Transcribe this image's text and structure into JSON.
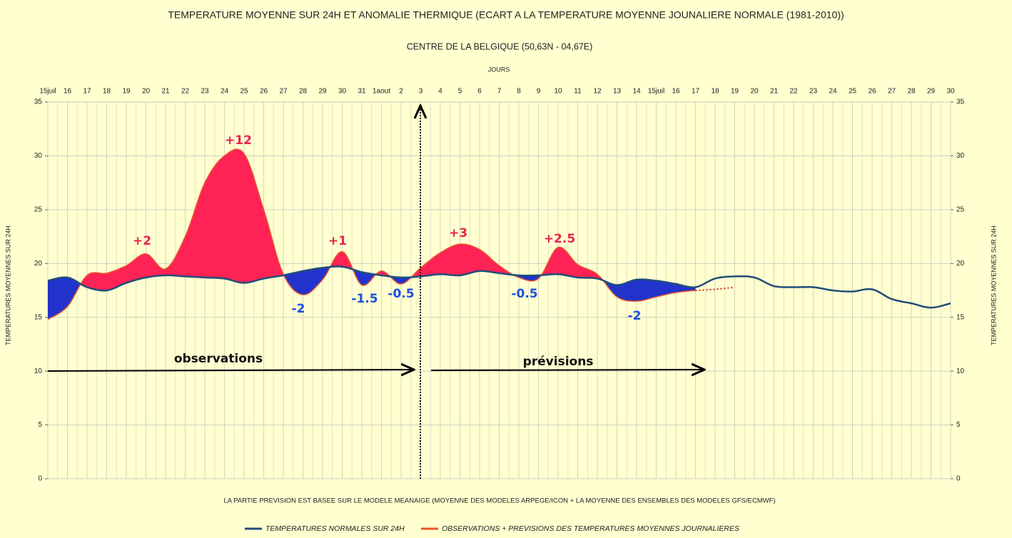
{
  "chart_data": {
    "type": "line",
    "title": "TEMPERATURE MOYENNE SUR 24H ET  ANOMALIE THERMIQUE (ECART A LA TEMPERATURE MOYENNE JOUNALIERE NORMALE (1981-2010))",
    "subtitle": "CENTRE DE LA BELGIQUE (50,63N - 04,67E)",
    "x_label": "JOURS",
    "y_label": "TEMPERATURES MOYENNES SUR 24H",
    "note": "LA PARTIE PREVISION EST BASEE SUR LE  MODELE MEANAIGE (MOYENNE DES MODELES  ARPEGE/ICON + LA MOYENNE DES ENSEMBLES DES MODELES GFS/ECMWF)",
    "categories": [
      "15juil",
      "16",
      "17",
      "18",
      "19",
      "20",
      "21",
      "22",
      "23",
      "24",
      "25",
      "26",
      "27",
      "28",
      "29",
      "30",
      "31",
      "1aout",
      "2",
      "3",
      "4",
      "5",
      "6",
      "7",
      "8",
      "9",
      "10",
      "11",
      "12",
      "13",
      "14",
      "15juil",
      "16",
      "17",
      "18",
      "19",
      "20",
      "21",
      "22",
      "23",
      "24",
      "25",
      "26",
      "27",
      "28",
      "29",
      "30"
    ],
    "series": [
      {
        "name": "TEMPERATURES NORMALES SUR 24H",
        "color": "#1f4e79",
        "values": [
          18.4,
          18.7,
          17.8,
          17.5,
          18.2,
          18.7,
          18.9,
          18.8,
          18.7,
          18.6,
          18.2,
          18.6,
          18.9,
          19.3,
          19.6,
          19.7,
          19.2,
          18.9,
          18.7,
          18.8,
          19.0,
          18.9,
          19.3,
          19.1,
          18.9,
          18.9,
          19.0,
          18.7,
          18.6,
          18.0,
          18.5,
          18.4,
          18.1,
          17.8,
          18.6,
          18.8,
          18.7,
          17.9,
          17.8,
          17.8,
          17.5,
          17.4,
          17.6,
          16.7,
          16.3,
          15.9,
          16.3
        ]
      },
      {
        "name": "OBSERVATIONS + PREVISIONS DES TEMPERATURES MOYENNES JOURNALIERES",
        "color": "#e8572a",
        "values": [
          14.8,
          16.0,
          18.9,
          19.1,
          19.8,
          20.9,
          19.5,
          22.5,
          27.5,
          30.0,
          30.2,
          25.0,
          19.0,
          17.1,
          18.5,
          21.1,
          18.0,
          19.3,
          18.1,
          19.6,
          21.0,
          21.8,
          21.3,
          19.8,
          18.7,
          18.6,
          21.5,
          19.9,
          19.0,
          16.9,
          16.5,
          16.9,
          17.3,
          17.5,
          17.6,
          17.8,
          null,
          null,
          null,
          null,
          null,
          null,
          null,
          null,
          null,
          null,
          null
        ],
        "dotted_from": 33
      }
    ],
    "anomaly_colors": {
      "above": "#ff2255",
      "below": "#2233cc"
    },
    "annotations": [
      "+2",
      "+12",
      "+1",
      "-2",
      "-1.5",
      "-0.5",
      "+3",
      "+2.5",
      "-0.5",
      "-2",
      "observations",
      "prévisions"
    ],
    "ylim": [
      0,
      35
    ],
    "yticks": [
      0,
      5,
      10,
      15,
      20,
      25,
      30,
      35
    ],
    "grid": true,
    "legend": "bottom"
  }
}
